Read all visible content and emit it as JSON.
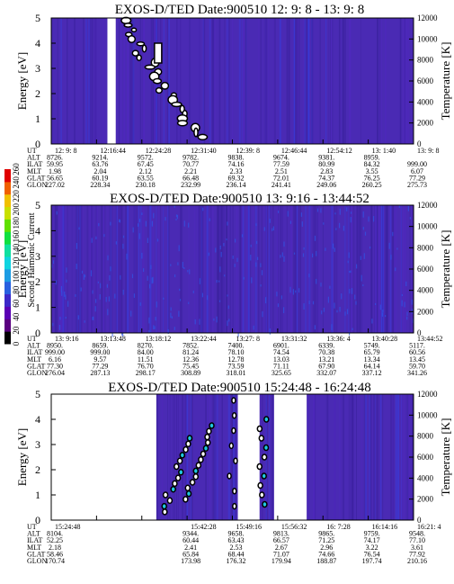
{
  "figure": {
    "colorbar": {
      "label": "Second Harmonic Current",
      "ticks": [
        "0",
        "20",
        "40",
        "60",
        "80",
        "100",
        "120",
        "140",
        "160",
        "180",
        "200",
        "220",
        "240",
        "260"
      ],
      "colors": [
        "#000000",
        "#5a0080",
        "#5a00b4",
        "#3c28c8",
        "#2860e0",
        "#1c9ce4",
        "#10d4e0",
        "#10e0a0",
        "#10e040",
        "#60e000",
        "#c8e000",
        "#f0c000",
        "#f06000",
        "#e00000"
      ]
    },
    "row_labels": [
      "UT",
      "ALT",
      "ILAT",
      "MLT",
      "GLAT",
      "GLON"
    ]
  },
  "chart_data": [
    {
      "type": "heatmap",
      "title": "EXOS-D/TED   Date:900510   12: 9: 8 - 13: 9: 8",
      "ylabel": "Energy [eV]",
      "ylabel_right": "Temperature [K]",
      "ylim": [
        0,
        5
      ],
      "ylim_right": [
        0,
        12000
      ],
      "yticks": [
        "0",
        "1",
        "2",
        "3",
        "4",
        "5"
      ],
      "yticks_right": [
        "0",
        "2000",
        "4000",
        "6000",
        "8000",
        "10000",
        "12000"
      ],
      "background_color": "#4a2ab4",
      "gaps": [
        [
          0.155,
          0.178
        ]
      ],
      "ephemeris": [
        [
          "12: 9: 8",
          "8726.",
          "59.95",
          "1.98",
          "56.65",
          "227.02"
        ],
        [
          "12:16:44",
          "9214.",
          "63.76",
          "2.04",
          "60.19",
          "228.34"
        ],
        [
          "12:24:28",
          "9572.",
          "67.45",
          "2.12",
          "63.55",
          "230.18"
        ],
        [
          "12:31:40",
          "9782.",
          "70.77",
          "2.21",
          "66.48",
          "232.99"
        ],
        [
          "12:39: 8",
          "9838.",
          "74.16",
          "2.33",
          "69.32",
          "236.14"
        ],
        [
          "12:46:44",
          "9674.",
          "77.59",
          "2.51",
          "72.01",
          "241.41"
        ],
        [
          "12:54:12",
          "9381.",
          "80.99",
          "2.83",
          "74.37",
          "249.06"
        ],
        [
          "13: 1:40",
          "8959.",
          "84.32",
          "3.55",
          "76.25",
          "260.25"
        ],
        [
          "13: 9: 8",
          "",
          "999.00",
          "6.07",
          "77.29",
          "275.73"
        ]
      ]
    },
    {
      "type": "heatmap",
      "title": "EXOS-D/TED   Date:900510   13: 9:16 - 13:44:52",
      "ylabel": "Energy [eV]",
      "ylabel_right": "Temperature [K]",
      "ylim": [
        0,
        5
      ],
      "ylim_right": [
        0,
        12000
      ],
      "yticks": [
        "0",
        "1",
        "2",
        "3",
        "4",
        "5"
      ],
      "yticks_right": [
        "0",
        "2000",
        "4000",
        "6000",
        "8000",
        "10000",
        "12000"
      ],
      "background_color": "#4a2ab4",
      "gaps": [],
      "ephemeris": [
        [
          "13: 9:16",
          "8950.",
          "999.00",
          "6.16",
          "77.30",
          "276.04"
        ],
        [
          "13:13:48",
          "8659.",
          "999.00",
          "9.57",
          "77.29",
          "287.13"
        ],
        [
          "13:18:12",
          "8270.",
          "84.00",
          "11.51",
          "76.70",
          "298.17"
        ],
        [
          "13:22:44",
          "7852.",
          "81.24",
          "12.36",
          "75.45",
          "308.89"
        ],
        [
          "13:27: 8",
          "7400.",
          "78.10",
          "12.78",
          "73.59",
          "318.01"
        ],
        [
          "13:31:32",
          "6901.",
          "74.54",
          "13.03",
          "71.11",
          "325.65"
        ],
        [
          "13:36: 4",
          "6339.",
          "70.38",
          "13.21",
          "67.90",
          "332.07"
        ],
        [
          "13:40:28",
          "5749.",
          "65.79",
          "13.34",
          "64.14",
          "337.12"
        ],
        [
          "13:44:52",
          "5117.",
          "60.56",
          "13.45",
          "59.70",
          "341.26"
        ]
      ]
    },
    {
      "type": "heatmap",
      "title": "EXOS-D/TED   Date:900510   15:24:48 - 16:24:48",
      "ylabel": "Energy [eV]",
      "ylabel_right": "Temperature [K]",
      "ylim": [
        0,
        5
      ],
      "ylim_right": [
        0,
        12000
      ],
      "yticks": [
        "0",
        "1",
        "2",
        "3",
        "4",
        "5"
      ],
      "yticks_right": [
        "0",
        "2000",
        "4000",
        "6000",
        "8000",
        "10000",
        "12000"
      ],
      "background_color": "#4a2ab4",
      "gaps": [
        [
          0.0,
          0.29
        ],
        [
          0.515,
          0.575
        ],
        [
          0.615,
          0.705
        ]
      ],
      "ephemeris": [
        [
          "15:24:48",
          "8104.",
          "52.25",
          "2.18",
          "58.46",
          "170.74"
        ],
        [
          "",
          "",
          "",
          "",
          "",
          ""
        ],
        [
          "",
          "",
          "",
          "",
          "",
          ""
        ],
        [
          "15:42:28",
          "9344.",
          "60.44",
          "2.41",
          "65.84",
          "173.98"
        ],
        [
          "15:49:16",
          "9658.",
          "63.43",
          "2.53",
          "68.44",
          "176.32"
        ],
        [
          "15:56:32",
          "9813.",
          "66.57",
          "2.67",
          "71.07",
          "179.94"
        ],
        [
          "16: 7:28",
          "9865.",
          "71.25",
          "2.96",
          "74.66",
          "188.87"
        ],
        [
          "16:14:16",
          "9759.",
          "74.17",
          "3.22",
          "76.54",
          "197.74"
        ],
        [
          "16:21: 4",
          "9548.",
          "77.10",
          "3.61",
          "77.92",
          "210.16"
        ]
      ]
    }
  ]
}
